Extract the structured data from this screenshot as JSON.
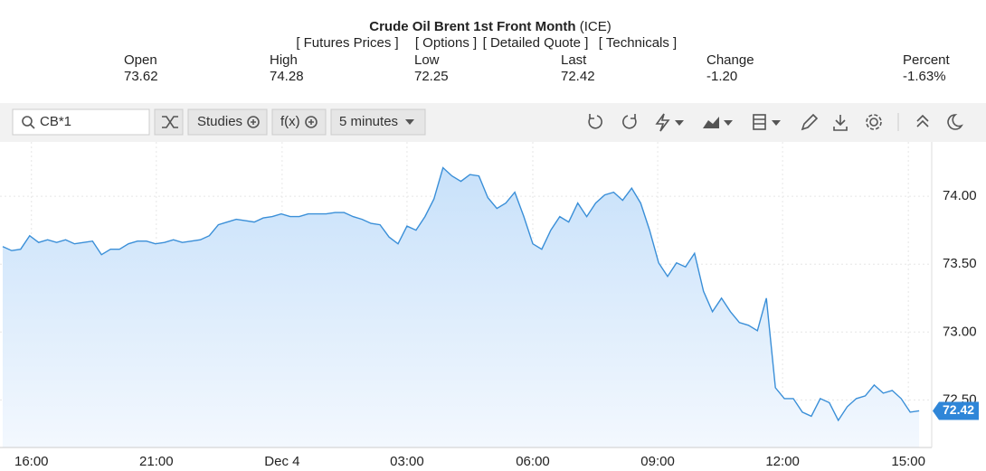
{
  "header": {
    "title": "Crude Oil Brent 1st Front Month",
    "exchange": "(ICE)",
    "links": [
      "[ Futures Prices ]",
      "[ Options ]",
      "[ Detailed Quote ]",
      "[ Technicals ]"
    ],
    "quote": [
      {
        "label": "Open",
        "value": "73.62"
      },
      {
        "label": "High",
        "value": "74.28"
      },
      {
        "label": "Low",
        "value": "72.25"
      },
      {
        "label": "Last",
        "value": "72.42"
      },
      {
        "label": "Change",
        "value": "-1.20"
      },
      {
        "label": "Percent",
        "value": "-1.63%"
      }
    ]
  },
  "toolbar": {
    "symbol": "CB*1",
    "studies": "Studies",
    "fx": "f(x)",
    "interval": "5 minutes"
  },
  "chart_data": {
    "type": "area",
    "color": "#3a8fd8",
    "values": [
      73.63,
      73.6,
      73.61,
      73.71,
      73.66,
      73.68,
      73.66,
      73.68,
      73.65,
      73.66,
      73.67,
      73.57,
      73.61,
      73.61,
      73.65,
      73.67,
      73.67,
      73.65,
      73.66,
      73.68,
      73.66,
      73.67,
      73.68,
      73.71,
      73.79,
      73.81,
      73.83,
      73.82,
      73.81,
      73.84,
      73.85,
      73.87,
      73.85,
      73.85,
      73.87,
      73.87,
      73.87,
      73.88,
      73.88,
      73.85,
      73.83,
      73.8,
      73.79,
      73.7,
      73.65,
      73.78,
      73.75,
      73.85,
      73.98,
      74.21,
      74.15,
      74.11,
      74.16,
      74.15,
      73.99,
      73.91,
      73.95,
      74.03,
      73.85,
      73.65,
      73.61,
      73.75,
      73.85,
      73.81,
      73.95,
      73.85,
      73.95,
      74.01,
      74.03,
      73.97,
      74.06,
      73.95,
      73.75,
      73.51,
      73.41,
      73.51,
      73.48,
      73.58,
      73.3,
      73.15,
      73.25,
      73.15,
      73.07,
      73.05,
      73.01,
      73.25,
      72.59,
      72.51,
      72.51,
      72.41,
      72.38,
      72.51,
      72.48,
      72.35,
      72.45,
      72.51,
      72.53,
      72.61,
      72.55,
      72.57,
      72.51,
      72.41,
      72.42
    ],
    "xlim": [
      -0.3,
      103.4
    ],
    "xticks": [
      {
        "value": 3.2,
        "label": "16:00"
      },
      {
        "value": 17.1,
        "label": "21:00"
      },
      {
        "value": 31.1,
        "label": "Dec 4"
      },
      {
        "value": 45.0,
        "label": "03:00"
      },
      {
        "value": 59.0,
        "label": "06:00"
      },
      {
        "value": 72.9,
        "label": "09:00"
      },
      {
        "value": 86.8,
        "label": "12:00"
      },
      {
        "value": 100.8,
        "label": "15:00"
      }
    ],
    "ylim": [
      72.15,
      74.4
    ],
    "yticks": [
      {
        "value": 72.5,
        "label": "72.50"
      },
      {
        "value": 73,
        "label": "73.00"
      },
      {
        "value": 73.5,
        "label": "73.50"
      },
      {
        "value": 74,
        "label": "74.00"
      }
    ],
    "last_price": {
      "value": 72.42,
      "label": "72.42"
    },
    "grid": true
  }
}
